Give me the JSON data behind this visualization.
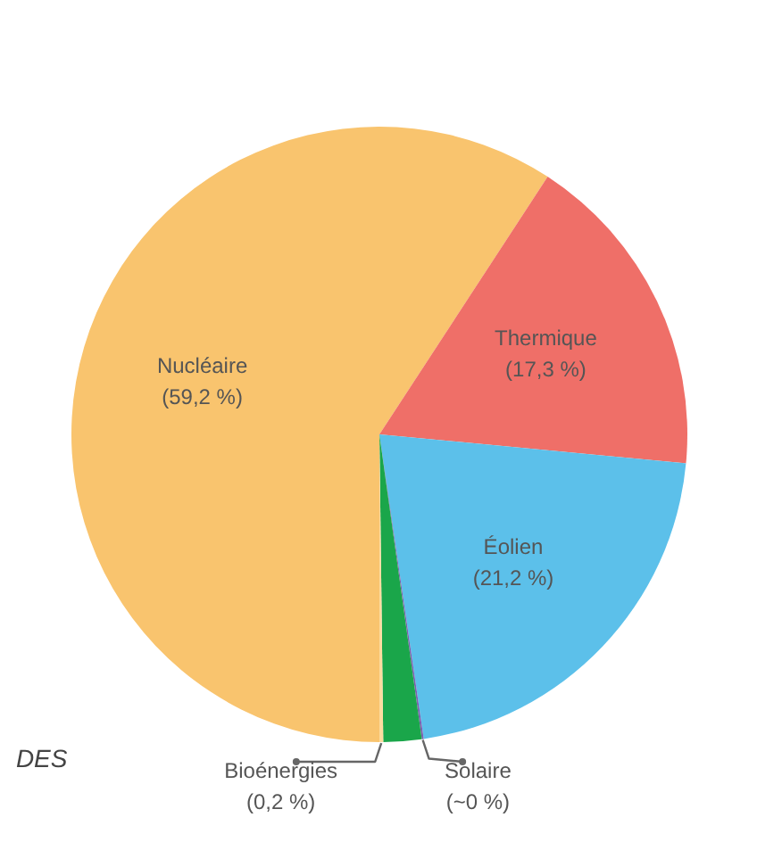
{
  "chart_data": {
    "type": "pie",
    "categories": [
      "Nucléaire",
      "Thermique",
      "Éolien",
      "Solaire",
      null,
      "Bioénergies"
    ],
    "values": [
      59.2,
      17.3,
      21.2,
      0.1,
      2.0,
      0.2
    ],
    "colors": [
      "#f9c46e",
      "#ef6f68",
      "#5cc0ea",
      "#7a5fb0",
      "#1aa64a",
      "#fcdca0"
    ],
    "value_labels": [
      "(59,2 %)",
      "(17,3 %)",
      "(21,2 %)",
      "(~0 %)",
      null,
      "(0,2 %)"
    ],
    "annotations": [
      "DES"
    ]
  }
}
